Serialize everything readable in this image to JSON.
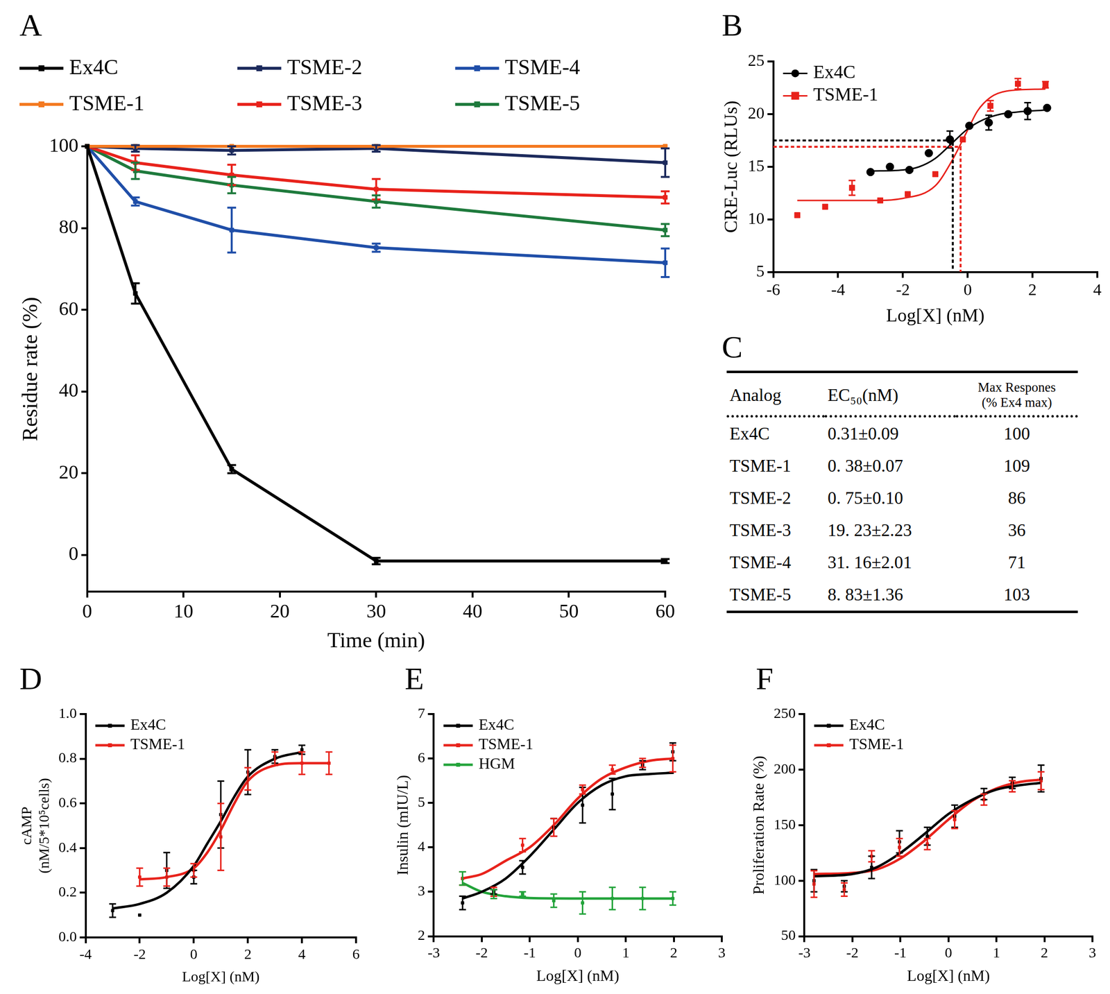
{
  "chart_data": [
    {
      "type": "line",
      "title": "A",
      "x_label": "Time (min)",
      "y_label": "Residue rate (%)",
      "x": [
        0,
        5,
        15,
        30,
        60
      ],
      "xlim": [
        0,
        60
      ],
      "xticks": [
        0,
        10,
        20,
        30,
        40,
        50,
        60
      ],
      "ylim": [
        -9,
        100
      ],
      "yticks": [
        0,
        20,
        40,
        60,
        80,
        100
      ],
      "grid": false,
      "legend": "top",
      "series": [
        {
          "name": "Ex4C",
          "color": "#000000",
          "marker": "square",
          "values": [
            100,
            64,
            21,
            -1.5,
            -1.5
          ],
          "errors": [
            0,
            2.5,
            1,
            0.8,
            0.5
          ]
        },
        {
          "name": "TSME-1",
          "color": "#f47920",
          "marker": "square",
          "values": [
            100,
            100,
            100,
            100,
            100
          ],
          "errors": [
            0,
            0,
            0,
            0,
            0
          ]
        },
        {
          "name": "TSME-2",
          "color": "#1c2a5c",
          "marker": "square",
          "values": [
            100,
            99.5,
            99,
            99.5,
            96
          ],
          "errors": [
            0,
            0.8,
            1,
            0.8,
            3.5
          ]
        },
        {
          "name": "TSME-3",
          "color": "#e8221b",
          "marker": "square",
          "values": [
            100,
            96,
            93,
            89.5,
            87.5
          ],
          "errors": [
            0,
            1.8,
            2.5,
            2.5,
            1.5
          ]
        },
        {
          "name": "TSME-4",
          "color": "#1f4ea8",
          "marker": "square",
          "values": [
            100,
            86.5,
            79.5,
            75.2,
            71.5
          ],
          "errors": [
            0,
            1,
            5.5,
            1,
            3.5
          ]
        },
        {
          "name": "TSME-5",
          "color": "#1e7a3c",
          "marker": "square",
          "values": [
            100,
            94,
            90.5,
            86.5,
            79.5
          ],
          "errors": [
            0,
            2,
            2,
            1.5,
            1.5
          ]
        }
      ]
    },
    {
      "type": "scatter",
      "title": "B",
      "x_label": "Log[X] (nM)",
      "y_label": "CRE-Luc (RLUs)",
      "xlim": [
        -6,
        4
      ],
      "xticks": [
        -6,
        -4,
        -2,
        0,
        2,
        4
      ],
      "ylim": [
        5,
        25
      ],
      "yticks": [
        5,
        10,
        15,
        20,
        25
      ],
      "grid": false,
      "legend": "upper left",
      "series": [
        {
          "name": "Ex4C",
          "color": "#000000",
          "marker": "circle",
          "x": [
            -3.0,
            -2.4,
            -1.8,
            -1.2,
            -0.55,
            0.05,
            0.65,
            1.25,
            1.85,
            2.45
          ],
          "values": [
            14.5,
            15.0,
            14.7,
            16.3,
            17.6,
            18.9,
            19.2,
            20.0,
            20.3,
            20.6
          ],
          "errors": [
            0,
            0,
            0,
            0,
            0.8,
            0,
            0.7,
            0,
            0.8,
            0
          ],
          "fit": {
            "x": [
              -3,
              -2,
              -1.5,
              -1,
              -0.5,
              0,
              0.5,
              1,
              1.5,
              2.45
            ],
            "values": [
              14.6,
              14.7,
              15.0,
              15.8,
              17.2,
              18.6,
              19.5,
              20.0,
              20.2,
              20.4
            ]
          },
          "ec50": {
            "x": -0.46,
            "y": 17.5
          }
        },
        {
          "name": "TSME-1",
          "color": "#e8221b",
          "marker": "square",
          "x": [
            -5.26,
            -4.4,
            -3.57,
            -2.7,
            -1.85,
            -1.0,
            -0.15,
            0.7,
            1.55,
            2.4
          ],
          "values": [
            10.4,
            11.2,
            13.0,
            11.8,
            12.4,
            14.3,
            17.6,
            20.8,
            22.9,
            22.8
          ],
          "errors": [
            0,
            0,
            0.7,
            0,
            0,
            0,
            0,
            0.5,
            0.5,
            0.3
          ],
          "fit": {
            "x": [
              -5.26,
              -3,
              -2,
              -1,
              -0.5,
              0,
              0.3,
              0.7,
              1.2,
              2.4
            ],
            "values": [
              11.8,
              11.8,
              12.0,
              13.2,
              15.5,
              18.5,
              20.3,
              21.6,
              22.2,
              22.4
            ]
          },
          "ec50": {
            "x": -0.22,
            "y": 16.9
          }
        }
      ]
    },
    {
      "type": "scatter",
      "title": "D",
      "x_label": "Log[X] (nM)",
      "y_label": [
        "cAMP",
        "(nM/5*10⁵cells)"
      ],
      "xlim": [
        -4,
        6
      ],
      "xticks": [
        -4,
        -2,
        0,
        2,
        4,
        6
      ],
      "ylim": [
        0,
        1
      ],
      "yticks": [
        {
          "value": 0,
          "label": "0.0"
        },
        0.2,
        0.4,
        0.6,
        0.8,
        {
          "value": 1,
          "label": "1.0"
        }
      ],
      "grid": false,
      "legend": "upper left",
      "series": [
        {
          "name": "Ex4C",
          "color": "#000000",
          "marker": "square",
          "x": [
            -3,
            -2,
            -1,
            0,
            1,
            2,
            3,
            4
          ],
          "values": [
            0.12,
            0.1,
            0.3,
            0.27,
            0.55,
            0.74,
            0.81,
            0.84
          ],
          "errors": [
            0.03,
            0,
            0.08,
            0.03,
            0.15,
            0.1,
            0.03,
            0.02
          ],
          "fit": {
            "x": [
              -3,
              -2,
              -1,
              0,
              0.5,
              1,
              1.5,
              2,
              3,
              4
            ],
            "values": [
              0.13,
              0.15,
              0.2,
              0.32,
              0.42,
              0.52,
              0.63,
              0.72,
              0.8,
              0.83
            ]
          }
        },
        {
          "name": "TSME-1",
          "color": "#e8221b",
          "marker": "square",
          "x": [
            -2,
            -1,
            0,
            1,
            2,
            3,
            4,
            5
          ],
          "values": [
            0.27,
            0.27,
            0.3,
            0.45,
            0.71,
            0.8,
            0.78,
            0.78
          ],
          "errors": [
            0.04,
            0.04,
            0.03,
            0.15,
            0.05,
            0.03,
            0.05,
            0.05
          ],
          "fit": {
            "x": [
              -2,
              -1,
              0,
              0.5,
              1,
              1.5,
              2,
              3,
              4,
              5
            ],
            "values": [
              0.26,
              0.27,
              0.31,
              0.38,
              0.48,
              0.6,
              0.7,
              0.77,
              0.78,
              0.78
            ]
          }
        }
      ]
    },
    {
      "type": "scatter",
      "title": "E",
      "x_label": "Log[X] (nM)",
      "y_label": "Insulin (mIU/L)",
      "xlim": [
        -3,
        3
      ],
      "xticks": [
        -3,
        -2,
        -1,
        0,
        1,
        2,
        3
      ],
      "ylim": [
        2,
        7
      ],
      "yticks": [
        2,
        3,
        4,
        5,
        6,
        7
      ],
      "grid": false,
      "legend": "upper left",
      "series": [
        {
          "name": "Ex4C",
          "color": "#000000",
          "marker": "square",
          "x": [
            -2.4,
            -1.75,
            -1.15,
            -0.5,
            0.1,
            0.72,
            1.35,
            1.98
          ],
          "values": [
            2.75,
            3.0,
            3.55,
            4.45,
            4.95,
            5.2,
            5.85,
            6.15
          ],
          "errors": [
            0.15,
            0.05,
            0.15,
            0.2,
            0.4,
            0.35,
            0.1,
            0.2
          ],
          "fit": {
            "x": [
              -2.4,
              -2,
              -1.5,
              -1,
              -0.5,
              0,
              0.5,
              1,
              1.5,
              2
            ],
            "values": [
              2.85,
              3.0,
              3.3,
              3.8,
              4.4,
              5.0,
              5.4,
              5.6,
              5.65,
              5.68
            ]
          }
        },
        {
          "name": "TSME-1",
          "color": "#e8221b",
          "marker": "square",
          "x": [
            -2.4,
            -1.75,
            -1.15,
            -0.5,
            0.1,
            0.72,
            1.35,
            1.98
          ],
          "values": [
            3.3,
            3.0,
            4.05,
            4.45,
            5.3,
            5.75,
            5.9,
            6.0
          ],
          "errors": [
            0.15,
            0.1,
            0.15,
            0.2,
            0.1,
            0.1,
            0.1,
            0.3
          ],
          "fit": {
            "x": [
              -2.4,
              -2,
              -1.5,
              -1,
              -0.5,
              0,
              0.5,
              1,
              1.5,
              2
            ],
            "values": [
              3.3,
              3.4,
              3.7,
              4.0,
              4.5,
              5.1,
              5.55,
              5.8,
              5.95,
              6.0
            ]
          }
        },
        {
          "name": "HGM",
          "color": "#22a33a",
          "marker": "square",
          "x": [
            -2.4,
            -1.75,
            -1.15,
            -0.5,
            0.1,
            0.72,
            1.35,
            1.98
          ],
          "values": [
            3.3,
            2.95,
            2.95,
            2.8,
            2.75,
            2.85,
            2.85,
            2.85
          ],
          "errors": [
            0.15,
            0.1,
            0.05,
            0.15,
            0.25,
            0.25,
            0.25,
            0.15
          ],
          "fit": {
            "x": [
              -2.4,
              -2,
              -1.5,
              -1,
              0,
              2
            ],
            "values": [
              3.2,
              3.0,
              2.9,
              2.86,
              2.85,
              2.85
            ]
          }
        }
      ]
    },
    {
      "type": "scatter",
      "title": "F",
      "x_label": "Log[X] (nM)",
      "y_label": "Proliferation Rate (%)",
      "xlim": [
        -3,
        3
      ],
      "xticks": [
        -3,
        -2,
        -1,
        0,
        1,
        2,
        3
      ],
      "ylim": [
        50,
        250
      ],
      "yticks": [
        50,
        100,
        150,
        200,
        250
      ],
      "grid": false,
      "legend": "upper left",
      "series": [
        {
          "name": "Ex4C",
          "color": "#000000",
          "marker": "square",
          "x": [
            -2.8,
            -2.17,
            -1.6,
            -1.02,
            -0.44,
            0.13,
            0.74,
            1.33,
            1.93
          ],
          "values": [
            100,
            95,
            112,
            135,
            140,
            158,
            178,
            188,
            192
          ],
          "errors": [
            10,
            5,
            10,
            10,
            8,
            10,
            5,
            5,
            12
          ],
          "fit": {
            "x": [
              -2.8,
              -2,
              -1.5,
              -1,
              -0.5,
              0,
              0.5,
              1,
              1.5,
              1.93
            ],
            "values": [
              104,
              106,
              112,
              125,
              142,
              160,
              173,
              182,
              186,
              188
            ]
          }
        },
        {
          "name": "TSME-1",
          "color": "#e8221b",
          "marker": "square",
          "x": [
            -2.8,
            -2.17,
            -1.6,
            -1.02,
            -0.44,
            0.13,
            0.74,
            1.33,
            1.93
          ],
          "values": [
            97,
            92,
            122,
            130,
            133,
            155,
            173,
            185,
            190
          ],
          "errors": [
            12,
            6,
            5,
            8,
            5,
            8,
            5,
            5,
            8
          ],
          "fit": {
            "x": [
              -2.8,
              -2,
              -1.5,
              -1,
              -0.5,
              0,
              0.5,
              1,
              1.5,
              1.93
            ],
            "values": [
              106,
              107,
              110,
              120,
              136,
              155,
              172,
              183,
              189,
              191
            ]
          }
        }
      ]
    }
  ],
  "table": {
    "title": "C",
    "header": [
      "Analog",
      "EC₅₀(nM)",
      [
        "Max Respones",
        "(% Ex4 max)"
      ]
    ],
    "rows": [
      [
        "Ex4C",
        "0.31±0.09",
        100
      ],
      [
        "TSME-1",
        "0. 38±0.07",
        109
      ],
      [
        "TSME-2",
        "0. 75±0.10",
        86
      ],
      [
        "TSME-3",
        "19. 23±2.23",
        36
      ],
      [
        "TSME-4",
        "31. 16±2.01",
        71
      ],
      [
        "TSME-5",
        "8. 83±1.36",
        103
      ]
    ]
  }
}
